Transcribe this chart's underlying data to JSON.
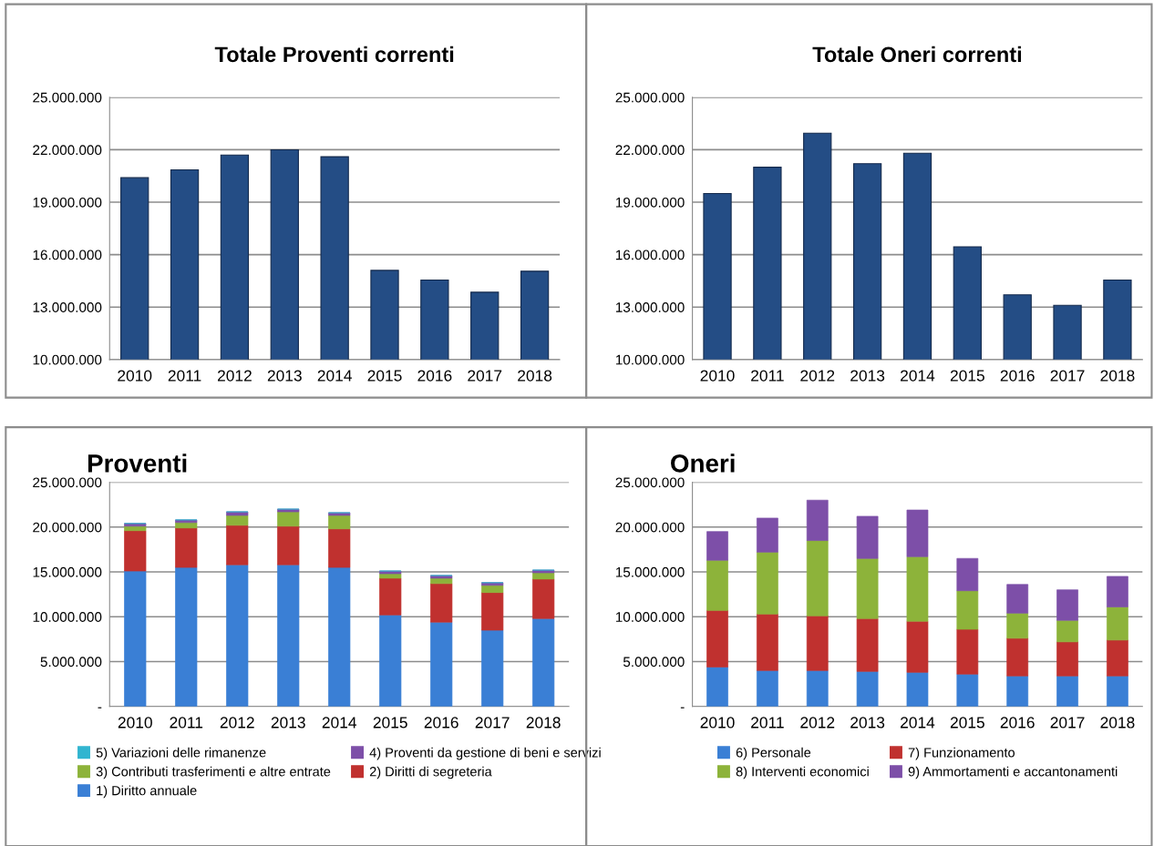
{
  "chart_data": [
    {
      "type": "bar",
      "title": "Totale Proventi correnti",
      "categories": [
        "2010",
        "2011",
        "2012",
        "2013",
        "2014",
        "2015",
        "2016",
        "2017",
        "2018"
      ],
      "values": [
        20400000,
        20850000,
        21700000,
        22000000,
        21600000,
        15100000,
        14550000,
        13850000,
        15050000
      ],
      "color": "#244d85",
      "ylim": [
        10000000,
        25000000
      ],
      "yticks": [
        {
          "value": 10000000,
          "label": "10.000.000"
        },
        {
          "value": 13000000,
          "label": "13.000.000"
        },
        {
          "value": 16000000,
          "label": "16.000.000"
        },
        {
          "value": 19000000,
          "label": "19.000.000"
        },
        {
          "value": 22000000,
          "label": "22.000.000"
        },
        {
          "value": 25000000,
          "label": "25.000.000"
        }
      ],
      "grid": "y",
      "legend": false
    },
    {
      "type": "bar",
      "title": "Totale Oneri correnti",
      "categories": [
        "2010",
        "2011",
        "2012",
        "2013",
        "2014",
        "2015",
        "2016",
        "2017",
        "2018"
      ],
      "values": [
        19500000,
        21000000,
        22950000,
        21200000,
        21800000,
        16450000,
        13700000,
        13100000,
        14550000
      ],
      "color": "#244d85",
      "ylim": [
        10000000,
        25000000
      ],
      "yticks": [
        {
          "value": 10000000,
          "label": "10.000.000"
        },
        {
          "value": 13000000,
          "label": "13.000.000"
        },
        {
          "value": 16000000,
          "label": "16.000.000"
        },
        {
          "value": 19000000,
          "label": "19.000.000"
        },
        {
          "value": 22000000,
          "label": "22.000.000"
        },
        {
          "value": 25000000,
          "label": "25.000.000"
        }
      ],
      "grid": "y",
      "legend": false
    },
    {
      "type": "bar",
      "title": "Proventi",
      "stacked": true,
      "categories": [
        "2010",
        "2011",
        "2012",
        "2013",
        "2014",
        "2015",
        "2016",
        "2017",
        "2018"
      ],
      "series": [
        {
          "name": "1) Diritto annuale",
          "color": "#3a7fd5",
          "values": [
            15100000,
            15500000,
            15800000,
            15800000,
            15500000,
            10200000,
            9400000,
            8500000,
            9800000
          ]
        },
        {
          "name": "2) Diritti di segreteria",
          "color": "#c0312f",
          "values": [
            4500000,
            4400000,
            4400000,
            4300000,
            4300000,
            4100000,
            4300000,
            4200000,
            4400000
          ]
        },
        {
          "name": "3) Contributi trasferimenti e altre entrate",
          "color": "#8db33a",
          "values": [
            500000,
            600000,
            1100000,
            1600000,
            1500000,
            500000,
            600000,
            800000,
            700000
          ]
        },
        {
          "name": "4) Proventi da gestione di beni e servizi",
          "color": "#7d4fa8",
          "values": [
            300000,
            300000,
            400000,
            300000,
            300000,
            300000,
            300000,
            300000,
            300000
          ]
        },
        {
          "name": "5) Variazioni delle rimanenze",
          "color": "#31b5d0",
          "values": [
            0,
            0,
            0,
            0,
            0,
            0,
            0,
            0,
            0
          ]
        }
      ],
      "ylim": [
        0,
        25000000
      ],
      "yticks": [
        {
          "value": 0,
          "label": "-"
        },
        {
          "value": 5000000,
          "label": "5.000.000"
        },
        {
          "value": 10000000,
          "label": "10.000.000"
        },
        {
          "value": 15000000,
          "label": "15.000.000"
        },
        {
          "value": 20000000,
          "label": "20.000.000"
        },
        {
          "value": 25000000,
          "label": "25.000.000"
        }
      ],
      "grid": "y",
      "legend": "bottom"
    },
    {
      "type": "bar",
      "title": "Oneri",
      "stacked": true,
      "categories": [
        "2010",
        "2011",
        "2012",
        "2013",
        "2014",
        "2015",
        "2016",
        "2017",
        "2018"
      ],
      "series": [
        {
          "name": "6) Personale",
          "color": "#3a7fd5",
          "values": [
            4400000,
            4000000,
            4000000,
            3900000,
            3800000,
            3600000,
            3400000,
            3400000,
            3400000
          ]
        },
        {
          "name": "7) Funzionamento",
          "color": "#c0312f",
          "values": [
            6300000,
            6300000,
            6100000,
            5900000,
            5700000,
            5000000,
            4200000,
            3800000,
            4000000
          ]
        },
        {
          "name": "8) Interventi economici",
          "color": "#8db33a",
          "values": [
            5600000,
            6900000,
            8400000,
            6700000,
            7200000,
            4300000,
            2800000,
            2400000,
            3700000
          ]
        },
        {
          "name": "9) Ammortamenti e accantonamenti",
          "color": "#7d4fa8",
          "values": [
            3200000,
            3800000,
            4500000,
            4700000,
            5200000,
            3600000,
            3200000,
            3400000,
            3400000
          ]
        }
      ],
      "ylim": [
        0,
        25000000
      ],
      "yticks": [
        {
          "value": 0,
          "label": "-"
        },
        {
          "value": 5000000,
          "label": "5.000.000"
        },
        {
          "value": 10000000,
          "label": "10.000.000"
        },
        {
          "value": 15000000,
          "label": "15.000.000"
        },
        {
          "value": 20000000,
          "label": "20.000.000"
        },
        {
          "value": 25000000,
          "label": "25.000.000"
        }
      ],
      "grid": "y",
      "legend": "bottom"
    }
  ]
}
